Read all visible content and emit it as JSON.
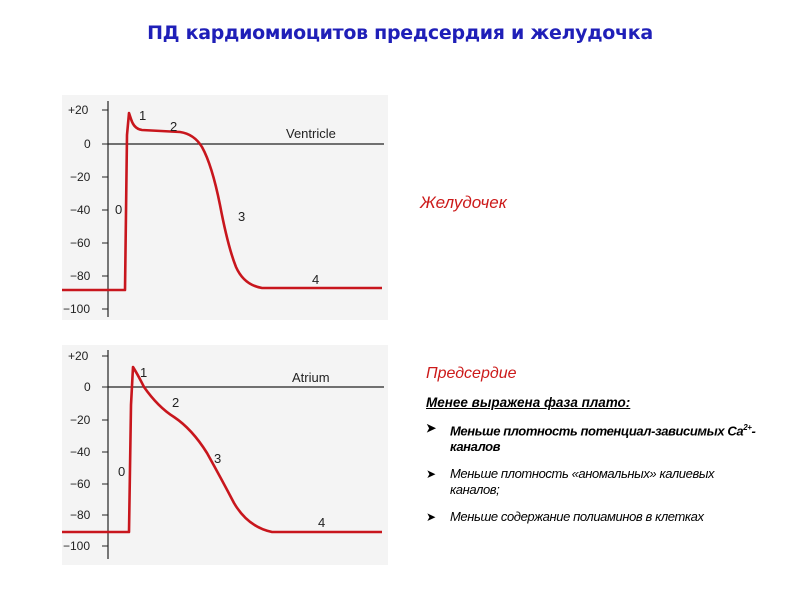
{
  "title": "ПД кардиомиоцитов предсердия и желудочка",
  "ventricle_panel": {
    "label": "Ventricle",
    "y_ticks": [
      "+20",
      "0",
      "−20",
      "−40",
      "−60",
      "−80",
      "−100"
    ],
    "phases": [
      "0",
      "1",
      "2",
      "3",
      "4"
    ],
    "curve_color": "#c8161d"
  },
  "atrium_panel": {
    "label": "Atrium",
    "y_ticks": [
      "+20",
      "0",
      "−20",
      "−40",
      "−60",
      "−80",
      "−100"
    ],
    "phases": [
      "0",
      "1",
      "2",
      "3",
      "4"
    ],
    "curve_color": "#c8161d"
  },
  "ventricle_caption": "Желудочек",
  "atrium_block": {
    "heading": "Предсердие",
    "subheading": "Менее выражена фаза плато:",
    "bullet_icon": "arrowhead-bullet-icon",
    "bullet_1_pre": "Меньше плотность потенциал-зависимых Ca",
    "bullet_1_sup": "2+",
    "bullet_1_post": "-каналов",
    "bullet_2": "Меньше плотность «аномальных» калиевых каналов;",
    "bullet_3": "Меньше содержание полиаминов в клетках"
  },
  "colors": {
    "title": "#1f1fb8",
    "accent": "#cc1a1a"
  }
}
